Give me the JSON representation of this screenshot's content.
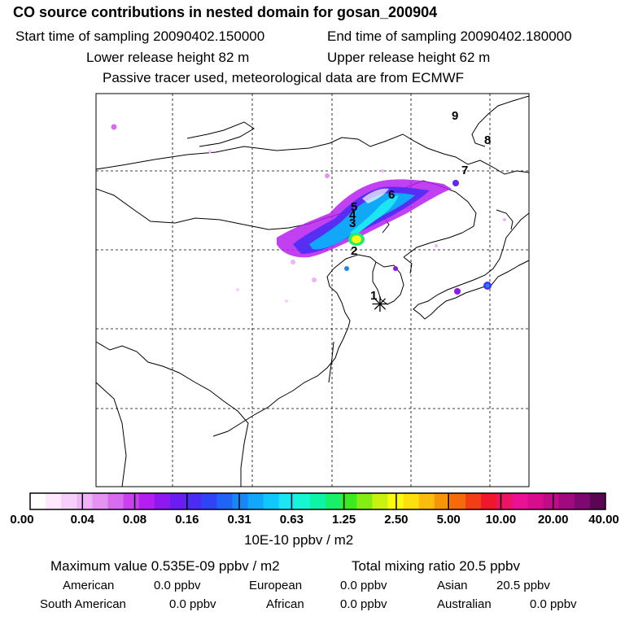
{
  "header": {
    "title": "CO  source contributions in nested domain for gosan_200904",
    "start_time": "Start time of sampling 20090402.150000",
    "end_time": "End time of sampling 20090402.180000",
    "lower_release": "Lower release height   82 m",
    "upper_release": "Upper release height   62 m",
    "tracer_note": "Passive tracer used, meteorological data are from ECMWF"
  },
  "chart_data": {
    "type": "heatmap",
    "title": "CO  source contributions in nested domain for gosan_200904",
    "colorbar": {
      "ticks": [
        "0.00",
        "0.04",
        "0.08",
        "0.16",
        "0.31",
        "0.63",
        "1.25",
        "2.50",
        "5.00",
        "10.00",
        "20.00",
        "40.00"
      ],
      "units": "10E-10 ppbv / m2",
      "colors": [
        "#ffffff",
        "#fde8ff",
        "#f7cffb",
        "#efb4f7",
        "#e493f3",
        "#d76cef",
        "#c940ee",
        "#b51ef0",
        "#8e18f0",
        "#6a1cf2",
        "#4a2cf4",
        "#2f44f6",
        "#1f64f7",
        "#1687f8",
        "#12a8fa",
        "#10c8fb",
        "#1ce6f4",
        "#14f6d4",
        "#0ef4a6",
        "#18ef6a",
        "#3cea20",
        "#84ee12",
        "#c8f210",
        "#fbfb10",
        "#fde00e",
        "#fbbc0c",
        "#f8940a",
        "#f56a0a",
        "#f23e14",
        "#f0162c",
        "#ee1464",
        "#ec1094",
        "#d80c8c",
        "#c00c88",
        "#a00a7e",
        "#7c0870",
        "#5a0654"
      ]
    },
    "markers": [
      {
        "label": "1"
      },
      {
        "label": "2"
      },
      {
        "label": "3"
      },
      {
        "label": "4"
      },
      {
        "label": "5"
      },
      {
        "label": "6"
      },
      {
        "label": "7"
      },
      {
        "label": "8"
      },
      {
        "label": "9"
      }
    ],
    "receptor_symbol": "✳"
  },
  "footer": {
    "units_label": "10E-10 ppbv / m2",
    "maximum": "Maximum value  0.535E-09 ppbv / m2",
    "total": "Total mixing ratio       20.5 ppbv",
    "regions": [
      {
        "name": "American",
        "value": "0.0 ppbv"
      },
      {
        "name": "European",
        "value": "0.0 ppbv"
      },
      {
        "name": "Asian",
        "value": "20.5 ppbv"
      },
      {
        "name": "South American",
        "value": "0.0 ppbv"
      },
      {
        "name": "African",
        "value": "0.0 ppbv"
      },
      {
        "name": "Australian",
        "value": "0.0 ppbv"
      }
    ]
  }
}
